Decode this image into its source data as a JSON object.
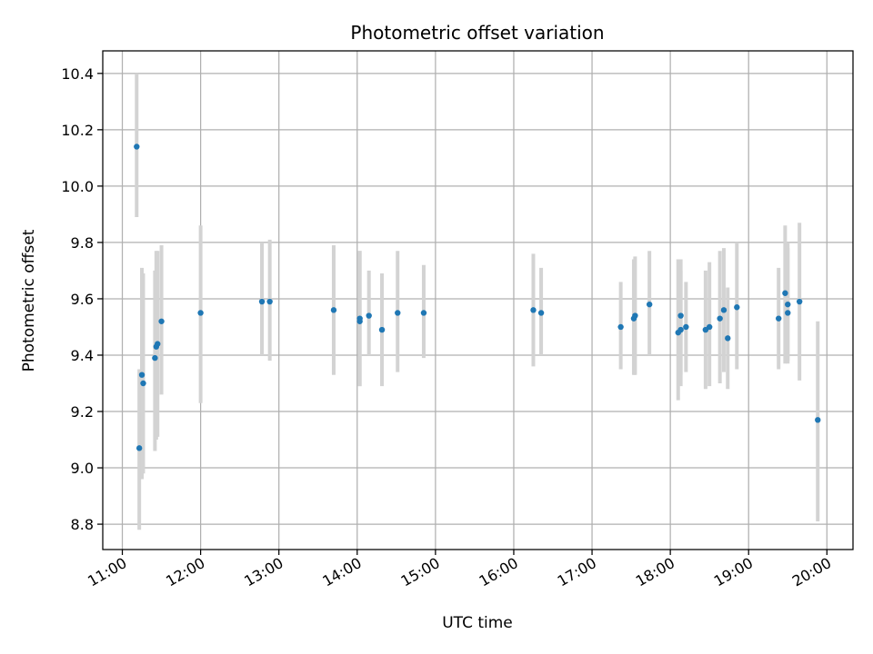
{
  "chart_data": {
    "type": "scatter",
    "title": "Photometric offset variation",
    "xlabel": "UTC time",
    "ylabel": "Photometric offset",
    "x_ticks": [
      "11:00",
      "12:00",
      "13:00",
      "14:00",
      "15:00",
      "16:00",
      "17:00",
      "18:00",
      "19:00",
      "20:00"
    ],
    "y_ticks": [
      "8.8",
      "9.0",
      "9.2",
      "9.4",
      "9.6",
      "9.8",
      "10.0",
      "10.2",
      "10.4"
    ],
    "xlim": [
      "10:45",
      "20:20"
    ],
    "ylim": [
      8.71,
      10.48
    ],
    "grid": true,
    "colors": {
      "point": "#1f77b4",
      "errorbar": "#d3d3d3",
      "grid": "#b0b0b0"
    },
    "points": [
      {
        "t": "11:11",
        "y": 10.14,
        "lo": 9.89,
        "hi": 10.4
      },
      {
        "t": "11:13",
        "y": 9.07,
        "lo": 8.78,
        "hi": 9.35
      },
      {
        "t": "11:15",
        "y": 9.33,
        "lo": 8.96,
        "hi": 9.71
      },
      {
        "t": "11:16",
        "y": 9.3,
        "lo": 8.98,
        "hi": 9.69
      },
      {
        "t": "11:25",
        "y": 9.39,
        "lo": 9.06,
        "hi": 9.7
      },
      {
        "t": "11:26",
        "y": 9.43,
        "lo": 9.1,
        "hi": 9.77
      },
      {
        "t": "11:27",
        "y": 9.44,
        "lo": 9.11,
        "hi": 9.77
      },
      {
        "t": "11:30",
        "y": 9.52,
        "lo": 9.26,
        "hi": 9.79
      },
      {
        "t": "12:00",
        "y": 9.55,
        "lo": 9.23,
        "hi": 9.86
      },
      {
        "t": "12:47",
        "y": 9.59,
        "lo": 9.4,
        "hi": 9.8
      },
      {
        "t": "12:53",
        "y": 9.59,
        "lo": 9.38,
        "hi": 9.81
      },
      {
        "t": "13:42",
        "y": 9.56,
        "lo": 9.33,
        "hi": 9.79
      },
      {
        "t": "14:02",
        "y": 9.52,
        "lo": 9.29,
        "hi": 9.77
      },
      {
        "t": "14:02",
        "y": 9.53,
        "lo": 9.29,
        "hi": 9.77
      },
      {
        "t": "14:09",
        "y": 9.54,
        "lo": 9.4,
        "hi": 9.7
      },
      {
        "t": "14:19",
        "y": 9.49,
        "lo": 9.29,
        "hi": 9.69
      },
      {
        "t": "14:31",
        "y": 9.55,
        "lo": 9.34,
        "hi": 9.77
      },
      {
        "t": "14:51",
        "y": 9.55,
        "lo": 9.39,
        "hi": 9.72
      },
      {
        "t": "16:15",
        "y": 9.56,
        "lo": 9.36,
        "hi": 9.76
      },
      {
        "t": "16:21",
        "y": 9.55,
        "lo": 9.4,
        "hi": 9.71
      },
      {
        "t": "17:22",
        "y": 9.5,
        "lo": 9.35,
        "hi": 9.66
      },
      {
        "t": "17:32",
        "y": 9.53,
        "lo": 9.33,
        "hi": 9.74
      },
      {
        "t": "17:33",
        "y": 9.54,
        "lo": 9.33,
        "hi": 9.75
      },
      {
        "t": "17:44",
        "y": 9.58,
        "lo": 9.4,
        "hi": 9.77
      },
      {
        "t": "18:06",
        "y": 9.48,
        "lo": 9.24,
        "hi": 9.74
      },
      {
        "t": "18:08",
        "y": 9.54,
        "lo": 9.33,
        "hi": 9.74
      },
      {
        "t": "18:08",
        "y": 9.49,
        "lo": 9.29,
        "hi": 9.7
      },
      {
        "t": "18:12",
        "y": 9.5,
        "lo": 9.34,
        "hi": 9.66
      },
      {
        "t": "18:27",
        "y": 9.49,
        "lo": 9.28,
        "hi": 9.7
      },
      {
        "t": "18:30",
        "y": 9.5,
        "lo": 9.29,
        "hi": 9.73
      },
      {
        "t": "18:38",
        "y": 9.53,
        "lo": 9.3,
        "hi": 9.77
      },
      {
        "t": "18:41",
        "y": 9.56,
        "lo": 9.34,
        "hi": 9.78
      },
      {
        "t": "18:44",
        "y": 9.46,
        "lo": 9.28,
        "hi": 9.64
      },
      {
        "t": "18:51",
        "y": 9.57,
        "lo": 9.35,
        "hi": 9.8
      },
      {
        "t": "19:23",
        "y": 9.53,
        "lo": 9.35,
        "hi": 9.71
      },
      {
        "t": "19:28",
        "y": 9.62,
        "lo": 9.37,
        "hi": 9.86
      },
      {
        "t": "19:30",
        "y": 9.55,
        "lo": 9.38,
        "hi": 9.78
      },
      {
        "t": "19:30",
        "y": 9.58,
        "lo": 9.37,
        "hi": 9.8
      },
      {
        "t": "19:39",
        "y": 9.59,
        "lo": 9.31,
        "hi": 9.87
      },
      {
        "t": "19:53",
        "y": 9.17,
        "lo": 8.81,
        "hi": 9.52
      }
    ]
  }
}
